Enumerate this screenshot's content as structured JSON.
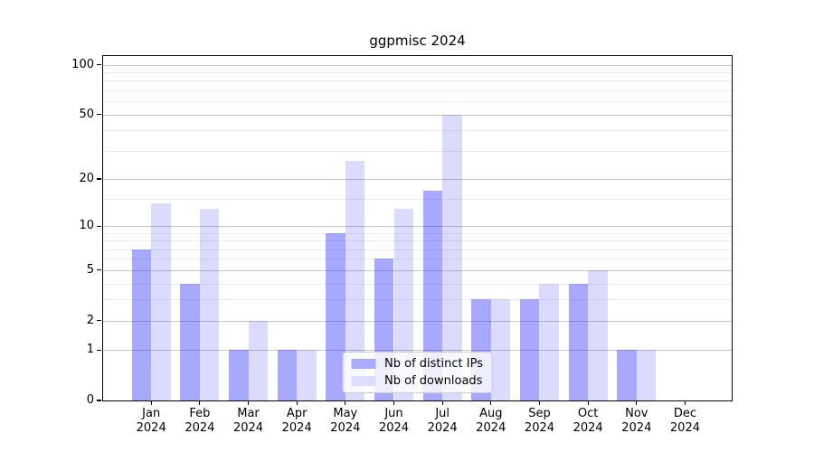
{
  "chart_data": {
    "type": "bar",
    "title": "ggpmisc 2024",
    "categories": [
      "Jan 2024",
      "Feb 2024",
      "Mar 2024",
      "Apr 2024",
      "May 2024",
      "Jun 2024",
      "Jul 2024",
      "Aug 2024",
      "Sep 2024",
      "Oct 2024",
      "Nov 2024",
      "Dec 2024"
    ],
    "x_tick_month": [
      "Jan",
      "Feb",
      "Mar",
      "Apr",
      "May",
      "Jun",
      "Jul",
      "Aug",
      "Sep",
      "Oct",
      "Nov",
      "Dec"
    ],
    "x_tick_year": "2024",
    "series": [
      {
        "name": "Nb of distinct IPs",
        "color": "#aaaafc",
        "fill": "rgba(0,0,255,0.34)",
        "values": [
          7,
          4,
          1,
          1,
          9,
          6,
          17,
          3,
          3,
          4,
          1,
          0
        ]
      },
      {
        "name": "Nb of downloads",
        "color": "#dcdcfc",
        "fill": "rgba(0,0,255,0.14)",
        "values": [
          14,
          13,
          2,
          1,
          26,
          13,
          50,
          3,
          4,
          5,
          1,
          0
        ]
      }
    ],
    "y_scale": "log1p",
    "y_major_ticks": [
      0,
      1,
      2,
      5,
      10,
      20,
      50,
      100
    ],
    "y_minor_ticks": [
      3,
      4,
      6,
      7,
      8,
      9,
      15,
      30,
      40,
      60,
      70,
      80,
      90
    ],
    "ylim": [
      0,
      113
    ],
    "grid": true,
    "legend_position": "lower center",
    "colors": {
      "major_grid": "#c9c9c9",
      "minor_grid": "#ebebeb",
      "axis": "#000000",
      "background": "#ffffff",
      "text": "#000000"
    }
  }
}
